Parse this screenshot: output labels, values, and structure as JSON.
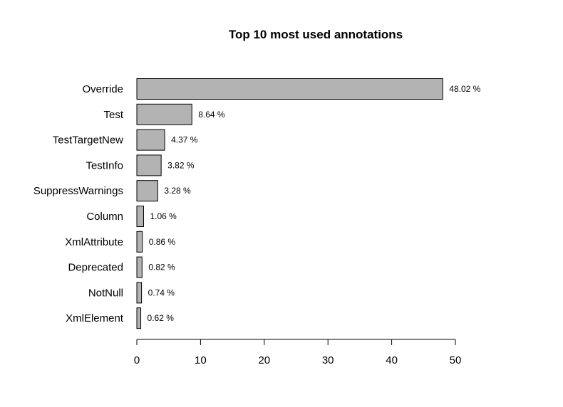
{
  "chart_data": {
    "type": "bar",
    "orientation": "horizontal",
    "title": "Top 10 most used annotations",
    "xlabel": "",
    "ylabel": "",
    "categories": [
      "Override",
      "Test",
      "TestTargetNew",
      "TestInfo",
      "SuppressWarnings",
      "Column",
      "XmlAttribute",
      "Deprecated",
      "NotNull",
      "XmlElement"
    ],
    "values": [
      48.02,
      8.64,
      4.37,
      3.82,
      3.28,
      1.06,
      0.86,
      0.82,
      0.74,
      0.62
    ],
    "value_labels": [
      "48.02 %",
      "8.64 %",
      "4.37 %",
      "3.82 %",
      "3.28 %",
      "1.06 %",
      "0.86 %",
      "0.82 %",
      "0.74 %",
      "0.62 %"
    ],
    "xlim": [
      0,
      50
    ],
    "xticks": [
      0,
      10,
      20,
      30,
      40,
      50
    ],
    "bar_color": "#b3b3b3",
    "grid": false,
    "legend": "none"
  }
}
